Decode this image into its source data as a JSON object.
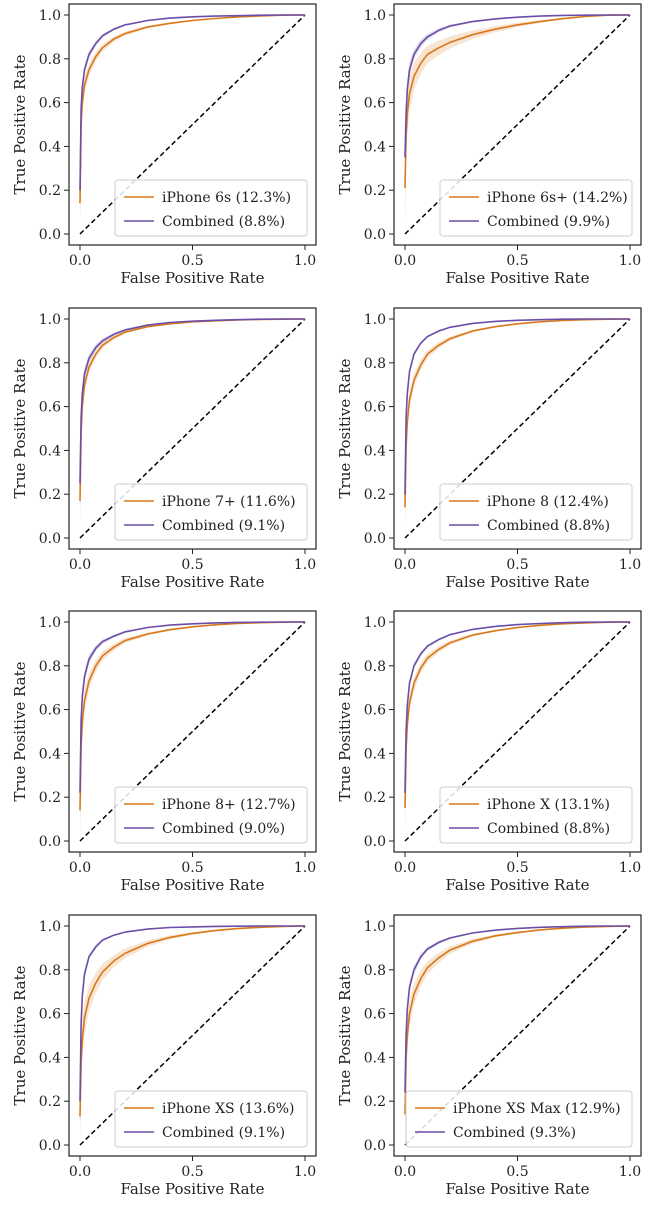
{
  "chart_data": [
    {
      "type": "line",
      "xlabel": "False Positive Rate",
      "ylabel": "True Positive Rate",
      "xlim": [
        0,
        1
      ],
      "ylim": [
        0,
        1
      ],
      "xticks": [
        "0.0",
        "0.5",
        "1.0"
      ],
      "yticks": [
        "0.0",
        "0.2",
        "0.4",
        "0.6",
        "0.8",
        "1.0"
      ],
      "legend_position": "bottom-right",
      "series": [
        {
          "name": "iPhone 6s (12.3%)",
          "color": "#d9781a",
          "x": [
            0,
            0.005,
            0.01,
            0.02,
            0.04,
            0.07,
            0.1,
            0.15,
            0.2,
            0.3,
            0.4,
            0.5,
            0.6,
            0.7,
            0.8,
            0.9,
            1
          ],
          "y": [
            0.14,
            0.5,
            0.6,
            0.68,
            0.75,
            0.81,
            0.85,
            0.89,
            0.915,
            0.945,
            0.962,
            0.975,
            0.984,
            0.991,
            0.996,
            0.999,
            1
          ],
          "band": 0.05
        },
        {
          "name": "Combined (8.8%)",
          "color": "#6a4ea8",
          "x": [
            0,
            0.005,
            0.01,
            0.02,
            0.04,
            0.07,
            0.1,
            0.15,
            0.2,
            0.3,
            0.4,
            0.5,
            0.6,
            0.7,
            0.8,
            0.9,
            1
          ],
          "y": [
            0.2,
            0.57,
            0.67,
            0.75,
            0.82,
            0.87,
            0.905,
            0.935,
            0.955,
            0.975,
            0.986,
            0.992,
            0.995,
            0.997,
            0.999,
            1,
            1
          ],
          "band": 0.04
        }
      ]
    },
    {
      "type": "line",
      "xlabel": "False Positive Rate",
      "ylabel": "True Positive Rate",
      "xlim": [
        0,
        1
      ],
      "ylim": [
        0,
        1
      ],
      "xticks": [
        "0.0",
        "0.5",
        "1.0"
      ],
      "yticks": [
        "0.0",
        "0.2",
        "0.4",
        "0.6",
        "0.8",
        "1.0"
      ],
      "legend_position": "bottom-right",
      "series": [
        {
          "name": "iPhone 6s+ (14.2%)",
          "color": "#d9781a",
          "x": [
            0,
            0.005,
            0.01,
            0.02,
            0.04,
            0.07,
            0.1,
            0.15,
            0.2,
            0.3,
            0.4,
            0.5,
            0.6,
            0.7,
            0.8,
            0.9,
            1
          ],
          "y": [
            0.21,
            0.45,
            0.55,
            0.64,
            0.72,
            0.78,
            0.82,
            0.85,
            0.875,
            0.91,
            0.935,
            0.955,
            0.97,
            0.983,
            0.993,
            0.999,
            1
          ],
          "band": 0.1
        },
        {
          "name": "Combined (9.9%)",
          "color": "#6a4ea8",
          "x": [
            0,
            0.005,
            0.01,
            0.02,
            0.04,
            0.07,
            0.1,
            0.15,
            0.2,
            0.3,
            0.4,
            0.5,
            0.6,
            0.7,
            0.8,
            0.9,
            1
          ],
          "y": [
            0.35,
            0.55,
            0.66,
            0.75,
            0.82,
            0.87,
            0.9,
            0.93,
            0.95,
            0.97,
            0.982,
            0.99,
            0.995,
            0.998,
            0.999,
            1,
            1
          ],
          "band": 0.06
        }
      ]
    },
    {
      "type": "line",
      "xlabel": "False Positive Rate",
      "ylabel": "True Positive Rate",
      "xlim": [
        0,
        1
      ],
      "ylim": [
        0,
        1
      ],
      "xticks": [
        "0.0",
        "0.5",
        "1.0"
      ],
      "yticks": [
        "0.0",
        "0.2",
        "0.4",
        "0.6",
        "0.8",
        "1.0"
      ],
      "legend_position": "bottom-right",
      "series": [
        {
          "name": "iPhone 7+ (11.6%)",
          "color": "#d9781a",
          "x": [
            0,
            0.005,
            0.01,
            0.02,
            0.04,
            0.07,
            0.1,
            0.15,
            0.2,
            0.3,
            0.4,
            0.5,
            0.6,
            0.7,
            0.8,
            0.9,
            1
          ],
          "y": [
            0.17,
            0.48,
            0.6,
            0.7,
            0.78,
            0.84,
            0.88,
            0.915,
            0.94,
            0.965,
            0.978,
            0.987,
            0.992,
            0.996,
            0.998,
            0.999,
            1
          ],
          "band": 0.05
        },
        {
          "name": "Combined (9.1%)",
          "color": "#6a4ea8",
          "x": [
            0,
            0.005,
            0.01,
            0.02,
            0.04,
            0.07,
            0.1,
            0.15,
            0.2,
            0.3,
            0.4,
            0.5,
            0.6,
            0.7,
            0.8,
            0.9,
            1
          ],
          "y": [
            0.25,
            0.55,
            0.66,
            0.75,
            0.82,
            0.87,
            0.9,
            0.93,
            0.95,
            0.972,
            0.984,
            0.99,
            0.994,
            0.997,
            0.999,
            1,
            1
          ],
          "band": 0.05
        }
      ]
    },
    {
      "type": "line",
      "xlabel": "False Positive Rate",
      "ylabel": "True Positive Rate",
      "xlim": [
        0,
        1
      ],
      "ylim": [
        0,
        1
      ],
      "xticks": [
        "0.0",
        "0.5",
        "1.0"
      ],
      "yticks": [
        "0.0",
        "0.2",
        "0.4",
        "0.6",
        "0.8",
        "1.0"
      ],
      "legend_position": "bottom-right",
      "series": [
        {
          "name": "iPhone 8 (12.4%)",
          "color": "#d9781a",
          "x": [
            0,
            0.005,
            0.01,
            0.02,
            0.04,
            0.07,
            0.1,
            0.15,
            0.2,
            0.3,
            0.4,
            0.5,
            0.6,
            0.7,
            0.8,
            0.9,
            1
          ],
          "y": [
            0.14,
            0.42,
            0.53,
            0.63,
            0.72,
            0.79,
            0.84,
            0.88,
            0.91,
            0.945,
            0.965,
            0.978,
            0.987,
            0.993,
            0.997,
            0.999,
            1
          ],
          "band": 0.05
        },
        {
          "name": "Combined (8.8%)",
          "color": "#6a4ea8",
          "x": [
            0,
            0.005,
            0.01,
            0.02,
            0.04,
            0.07,
            0.1,
            0.15,
            0.2,
            0.3,
            0.4,
            0.5,
            0.6,
            0.7,
            0.8,
            0.9,
            1
          ],
          "y": [
            0.2,
            0.55,
            0.66,
            0.76,
            0.84,
            0.89,
            0.92,
            0.945,
            0.962,
            0.98,
            0.989,
            0.994,
            0.997,
            0.999,
            1,
            1,
            1
          ],
          "band": 0.03
        }
      ]
    },
    {
      "type": "line",
      "xlabel": "False Positive Rate",
      "ylabel": "True Positive Rate",
      "xlim": [
        0,
        1
      ],
      "ylim": [
        0,
        1
      ],
      "xticks": [
        "0.0",
        "0.5",
        "1.0"
      ],
      "yticks": [
        "0.0",
        "0.2",
        "0.4",
        "0.6",
        "0.8",
        "1.0"
      ],
      "legend_position": "bottom-right",
      "series": [
        {
          "name": "iPhone 8+ (12.7%)",
          "color": "#d9781a",
          "x": [
            0,
            0.005,
            0.01,
            0.02,
            0.04,
            0.07,
            0.1,
            0.15,
            0.2,
            0.3,
            0.4,
            0.5,
            0.6,
            0.7,
            0.8,
            0.9,
            1
          ],
          "y": [
            0.14,
            0.43,
            0.54,
            0.64,
            0.73,
            0.8,
            0.845,
            0.885,
            0.915,
            0.945,
            0.965,
            0.978,
            0.987,
            0.993,
            0.997,
            0.999,
            1
          ],
          "band": 0.06
        },
        {
          "name": "Combined (9.0%)",
          "color": "#6a4ea8",
          "x": [
            0,
            0.005,
            0.01,
            0.02,
            0.04,
            0.07,
            0.1,
            0.15,
            0.2,
            0.3,
            0.4,
            0.5,
            0.6,
            0.7,
            0.8,
            0.9,
            1
          ],
          "y": [
            0.22,
            0.55,
            0.66,
            0.75,
            0.83,
            0.88,
            0.91,
            0.935,
            0.955,
            0.975,
            0.986,
            0.992,
            0.996,
            0.998,
            0.999,
            1,
            1
          ],
          "band": 0.05
        }
      ]
    },
    {
      "type": "line",
      "xlabel": "False Positive Rate",
      "ylabel": "True Positive Rate",
      "xlim": [
        0,
        1
      ],
      "ylim": [
        0,
        1
      ],
      "xticks": [
        "0.0",
        "0.5",
        "1.0"
      ],
      "yticks": [
        "0.0",
        "0.2",
        "0.4",
        "0.6",
        "0.8",
        "1.0"
      ],
      "legend_position": "bottom-right",
      "series": [
        {
          "name": "iPhone X (13.1%)",
          "color": "#d9781a",
          "x": [
            0,
            0.005,
            0.01,
            0.02,
            0.04,
            0.07,
            0.1,
            0.15,
            0.2,
            0.3,
            0.4,
            0.5,
            0.6,
            0.7,
            0.8,
            0.9,
            1
          ],
          "y": [
            0.15,
            0.42,
            0.53,
            0.63,
            0.72,
            0.79,
            0.835,
            0.875,
            0.905,
            0.94,
            0.96,
            0.975,
            0.985,
            0.992,
            0.996,
            0.999,
            1
          ],
          "band": 0.05
        },
        {
          "name": "Combined (8.8%)",
          "color": "#6a4ea8",
          "x": [
            0,
            0.005,
            0.01,
            0.02,
            0.04,
            0.07,
            0.1,
            0.15,
            0.2,
            0.3,
            0.4,
            0.5,
            0.6,
            0.7,
            0.8,
            0.9,
            1
          ],
          "y": [
            0.22,
            0.5,
            0.62,
            0.72,
            0.8,
            0.855,
            0.89,
            0.92,
            0.942,
            0.966,
            0.98,
            0.988,
            0.993,
            0.997,
            0.999,
            1,
            1
          ],
          "band": 0.03
        }
      ]
    },
    {
      "type": "line",
      "xlabel": "False Positive Rate",
      "ylabel": "True Positive Rate",
      "xlim": [
        0,
        1
      ],
      "ylim": [
        0,
        1
      ],
      "xticks": [
        "0.0",
        "0.5",
        "1.0"
      ],
      "yticks": [
        "0.0",
        "0.2",
        "0.4",
        "0.6",
        "0.8",
        "1.0"
      ],
      "legend_position": "bottom-right",
      "series": [
        {
          "name": "iPhone XS (13.6%)",
          "color": "#d9781a",
          "x": [
            0,
            0.005,
            0.01,
            0.02,
            0.04,
            0.07,
            0.1,
            0.15,
            0.2,
            0.3,
            0.4,
            0.5,
            0.6,
            0.7,
            0.8,
            0.9,
            1
          ],
          "y": [
            0.13,
            0.38,
            0.48,
            0.58,
            0.67,
            0.74,
            0.79,
            0.84,
            0.875,
            0.92,
            0.948,
            0.966,
            0.979,
            0.988,
            0.994,
            0.998,
            1
          ],
          "band": 0.08
        },
        {
          "name": "Combined (9.1%)",
          "color": "#6a4ea8",
          "x": [
            0,
            0.005,
            0.01,
            0.02,
            0.04,
            0.07,
            0.1,
            0.15,
            0.2,
            0.3,
            0.4,
            0.5,
            0.6,
            0.7,
            0.8,
            0.9,
            1
          ],
          "y": [
            0.2,
            0.55,
            0.68,
            0.78,
            0.86,
            0.905,
            0.935,
            0.958,
            0.972,
            0.986,
            0.993,
            0.996,
            0.998,
            0.999,
            1,
            1,
            1
          ],
          "band": 0.04
        }
      ]
    },
    {
      "type": "line",
      "xlabel": "False Positive Rate",
      "ylabel": "True Positive Rate",
      "xlim": [
        0,
        1
      ],
      "ylim": [
        0,
        1
      ],
      "xticks": [
        "0.0",
        "0.5",
        "1.0"
      ],
      "yticks": [
        "0.0",
        "0.2",
        "0.4",
        "0.6",
        "0.8",
        "1.0"
      ],
      "legend_position": "bottom-right",
      "series": [
        {
          "name": "iPhone XS Max (12.9%)",
          "color": "#d9781a",
          "x": [
            0,
            0.005,
            0.01,
            0.02,
            0.04,
            0.07,
            0.1,
            0.15,
            0.2,
            0.3,
            0.4,
            0.5,
            0.6,
            0.7,
            0.8,
            0.9,
            1
          ],
          "y": [
            0.14,
            0.4,
            0.5,
            0.6,
            0.69,
            0.76,
            0.81,
            0.855,
            0.89,
            0.93,
            0.955,
            0.97,
            0.982,
            0.99,
            0.995,
            0.998,
            1
          ],
          "band": 0.07
        },
        {
          "name": "Combined (9.3%)",
          "color": "#6a4ea8",
          "x": [
            0,
            0.005,
            0.01,
            0.02,
            0.04,
            0.07,
            0.1,
            0.15,
            0.2,
            0.3,
            0.4,
            0.5,
            0.6,
            0.7,
            0.8,
            0.9,
            1
          ],
          "y": [
            0.24,
            0.5,
            0.62,
            0.72,
            0.8,
            0.86,
            0.895,
            0.925,
            0.945,
            0.968,
            0.981,
            0.989,
            0.994,
            0.997,
            0.999,
            1,
            1
          ],
          "band": 0.04
        }
      ]
    }
  ]
}
